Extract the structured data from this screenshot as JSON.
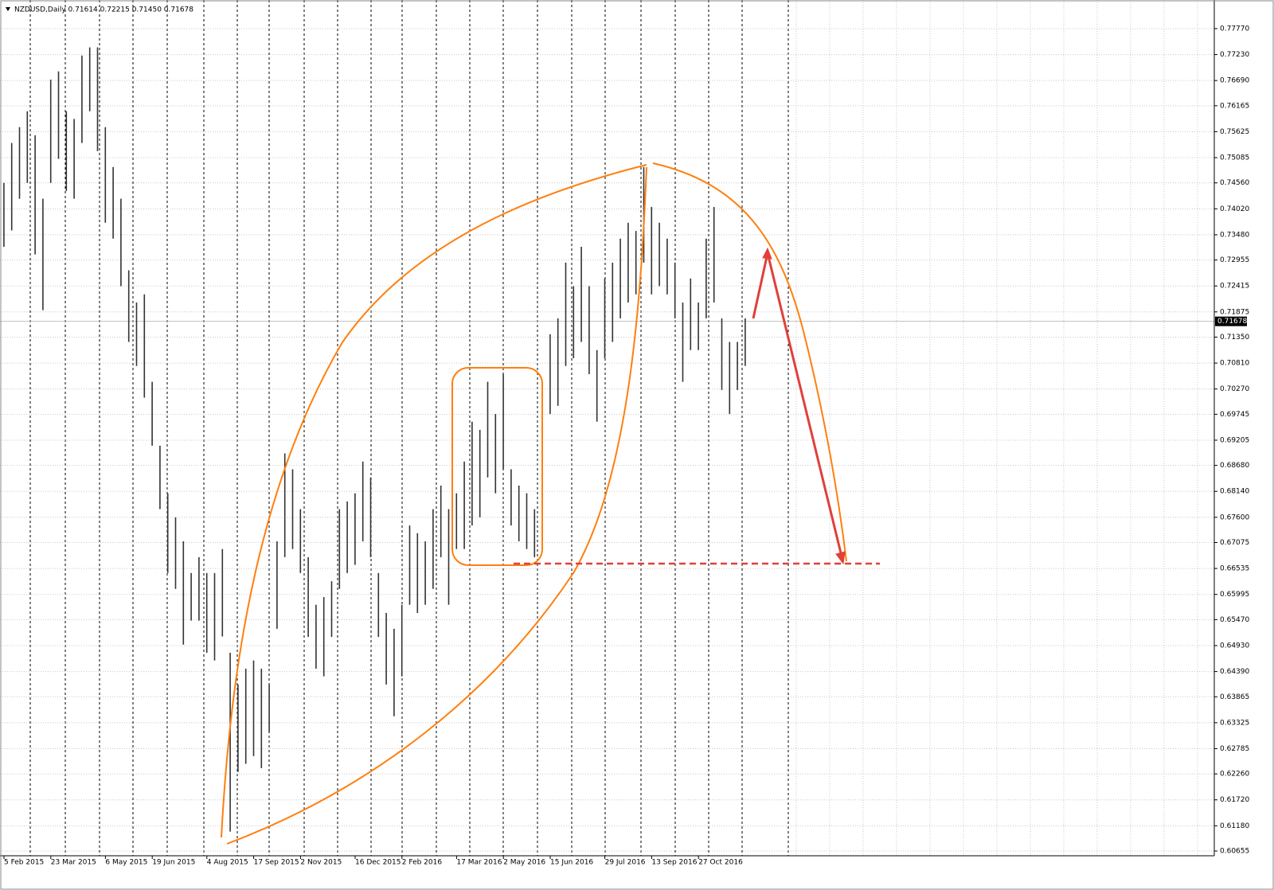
{
  "chart_data": {
    "type": "range-bar",
    "title": "NZDUSD,Daily  0.71614 0.72215 0.71450 0.71678",
    "color": "#333333",
    "last_price": 0.71678,
    "categories": [
      "5 Feb 2015",
      null,
      null,
      null,
      null,
      null,
      "23 Mar 2015",
      null,
      null,
      null,
      null,
      null,
      null,
      "6 May 2015",
      null,
      null,
      null,
      null,
      null,
      "19 Jun 2015",
      null,
      null,
      null,
      null,
      null,
      null,
      "4 Aug 2015",
      null,
      null,
      null,
      null,
      null,
      "17 Sep 2015",
      null,
      null,
      null,
      null,
      null,
      "2 Nov 2015",
      null,
      null,
      null,
      null,
      null,
      null,
      "16 Dec 2015",
      null,
      null,
      null,
      null,
      null,
      "2 Feb 2016",
      null,
      null,
      null,
      null,
      null,
      null,
      "17 Mar 2016",
      null,
      null,
      null,
      null,
      null,
      "2 May 2016",
      null,
      null,
      null,
      null,
      null,
      "15 Jun 2016",
      null,
      null,
      null,
      null,
      null,
      null,
      "29 Jul 2016",
      null,
      null,
      null,
      null,
      null,
      "13 Sep 2016",
      null,
      null,
      null,
      null,
      null,
      "27 Oct 2016",
      null,
      null,
      null,
      null,
      null,
      null
    ],
    "high": [
      0.7456,
      0.7539,
      0.7572,
      0.7605,
      0.7555,
      0.7423,
      0.7671,
      0.7688,
      0.7605,
      0.7589,
      0.7721,
      0.7738,
      0.7738,
      0.7572,
      0.7489,
      0.7423,
      0.7274,
      0.7207,
      0.7224,
      0.7042,
      0.6909,
      0.681,
      0.676,
      0.671,
      0.6644,
      0.6677,
      0.6644,
      0.6644,
      0.6694,
      0.6478,
      0.6412,
      0.6445,
      0.6462,
      0.6445,
      0.6412,
      0.671,
      0.6893,
      0.686,
      0.6777,
      0.6677,
      0.6578,
      0.6594,
      0.6627,
      0.6777,
      0.6793,
      0.681,
      0.6876,
      0.6843,
      0.6644,
      0.6561,
      0.6528,
      0.6578,
      0.6743,
      0.6727,
      0.671,
      0.6777,
      0.6826,
      0.6777,
      0.681,
      0.6876,
      0.6959,
      0.6942,
      0.7042,
      0.6975,
      0.7058,
      0.686,
      0.6826,
      0.681,
      0.6777,
      0.6975,
      0.7141,
      0.7174,
      0.729,
      0.7241,
      0.7323,
      0.7241,
      0.7108,
      0.7257,
      0.729,
      0.734,
      0.7373,
      0.7356,
      0.7489,
      0.7406,
      0.7373,
      0.734,
      0.729,
      0.7207,
      0.7257,
      0.7207,
      0.734,
      0.7406,
      0.7174,
      0.7125,
      0.7125,
      0.7174
    ],
    "low": [
      0.7323,
      0.7357,
      0.7423,
      0.7456,
      0.7307,
      0.7191,
      0.7456,
      0.7506,
      0.7439,
      0.7423,
      0.7539,
      0.7605,
      0.7522,
      0.7373,
      0.734,
      0.7241,
      0.7125,
      0.7075,
      0.7009,
      0.6909,
      0.6777,
      0.6644,
      0.6611,
      0.6495,
      0.6545,
      0.6545,
      0.6478,
      0.6462,
      0.6512,
      0.6106,
      0.623,
      0.6247,
      0.6263,
      0.6238,
      0.6313,
      0.6528,
      0.6677,
      0.6694,
      0.6644,
      0.6511,
      0.6445,
      0.6429,
      0.6511,
      0.6611,
      0.6644,
      0.6661,
      0.671,
      0.6677,
      0.6511,
      0.6412,
      0.6346,
      0.6429,
      0.6578,
      0.6561,
      0.6578,
      0.6611,
      0.6677,
      0.6578,
      0.6694,
      0.6694,
      0.6743,
      0.676,
      0.6843,
      0.681,
      0.686,
      0.6743,
      0.671,
      0.6694,
      0.6677,
      0.6826,
      0.6975,
      0.6992,
      0.7075,
      0.7091,
      0.7125,
      0.7058,
      0.6959,
      0.7091,
      0.7125,
      0.7174,
      0.7207,
      0.7224,
      0.729,
      0.7224,
      0.7241,
      0.7224,
      0.7174,
      0.7042,
      0.7108,
      0.7108,
      0.7174,
      0.7207,
      0.7025,
      0.6975,
      0.7025,
      0.7075
    ],
    "ylim": [
      0.60556,
      0.78366
    ],
    "yticks": [
      {
        "value": 0.7777,
        "label": "0.77770"
      },
      {
        "value": 0.7723,
        "label": "0.77230"
      },
      {
        "value": 0.7669,
        "label": "0.76690"
      },
      0.76165,
      0.75625,
      {
        "value": 0.75085,
        "label": "0.75085"
      },
      {
        "value": 0.7456,
        "label": "0.74560"
      },
      {
        "value": 0.7402,
        "label": "0.74020"
      },
      {
        "value": 0.7348,
        "label": "0.73480"
      },
      0.72955,
      0.72415,
      0.71875,
      {
        "value": 0.7135,
        "label": "0.71350"
      },
      {
        "value": 0.7081,
        "label": "0.70810"
      },
      {
        "value": 0.7027,
        "label": "0.70270"
      },
      0.69745,
      0.69205,
      {
        "value": 0.6868,
        "label": "0.68680"
      },
      {
        "value": 0.6814,
        "label": "0.68140"
      },
      {
        "value": 0.676,
        "label": "0.67600"
      },
      0.67075,
      0.66535,
      0.65995,
      {
        "value": 0.6547,
        "label": "0.65470"
      },
      {
        "value": 0.6493,
        "label": "0.64930"
      },
      {
        "value": 0.6439,
        "label": "0.64390"
      },
      0.63865,
      0.63325,
      0.62785,
      {
        "value": 0.6226,
        "label": "0.62260"
      },
      {
        "value": 0.6172,
        "label": "0.61720"
      },
      {
        "value": 0.6118,
        "label": "0.61180"
      },
      0.60655
    ],
    "grid": true
  }
}
